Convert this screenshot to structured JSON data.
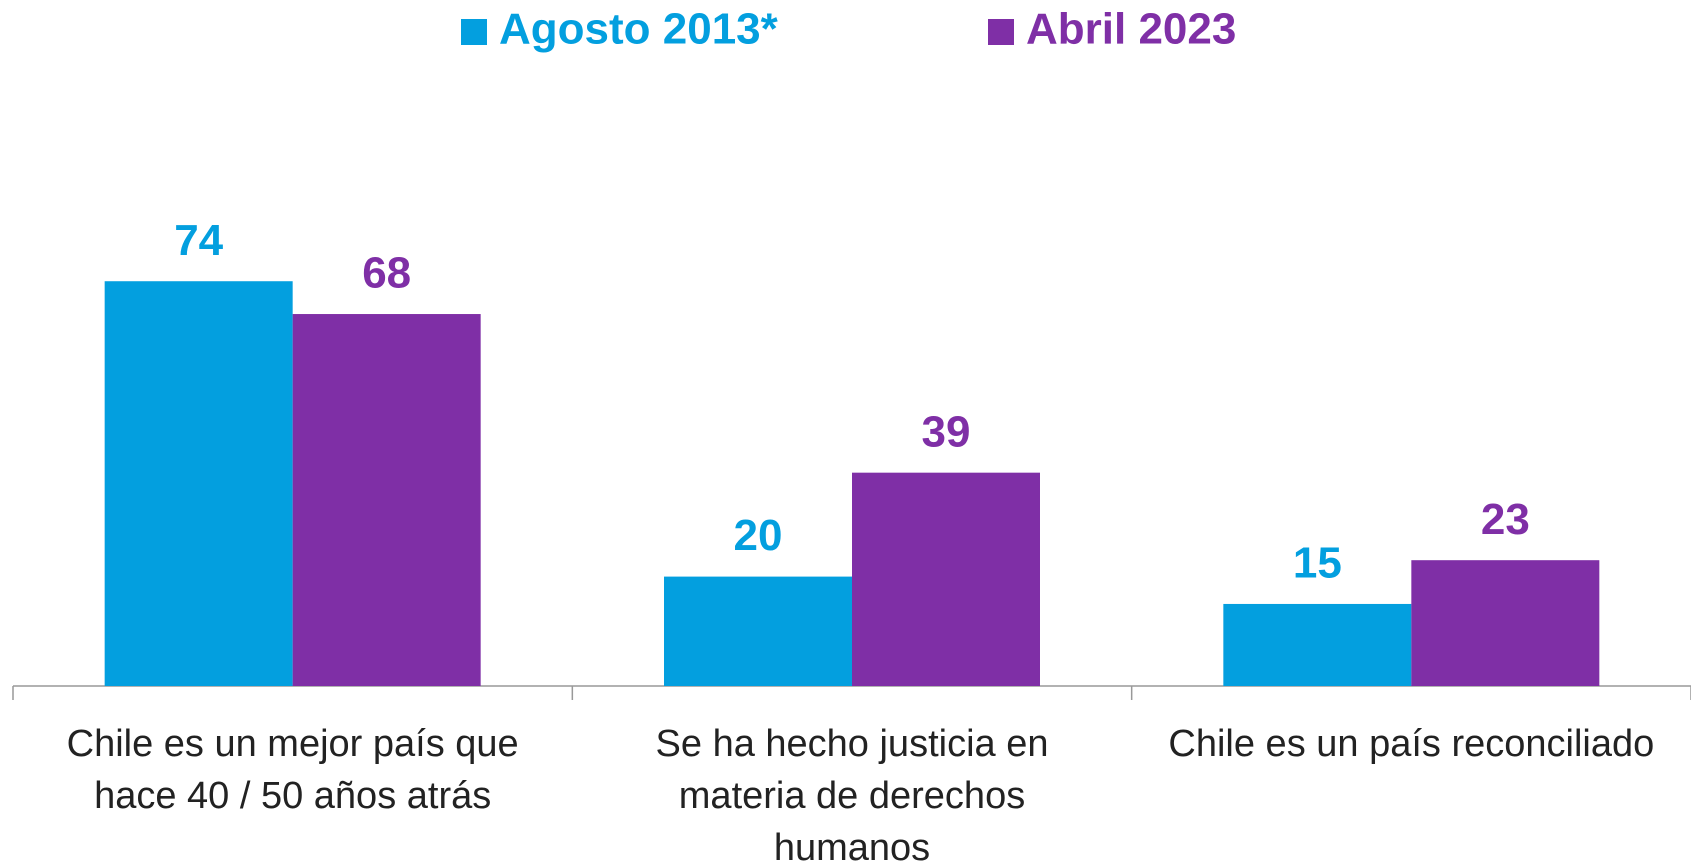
{
  "chart_data": {
    "type": "bar",
    "categories": [
      "Chile es un mejor país que hace 40 / 50 años atrás",
      "Se ha hecho justicia en materia de derechos humanos",
      "Chile es un país reconciliado"
    ],
    "series": [
      {
        "name": "Agosto 2013*",
        "color": "#039fdf",
        "values": [
          74,
          20,
          15
        ]
      },
      {
        "name": "Abril 2023",
        "color": "#7f2fa6",
        "values": [
          68,
          39,
          23
        ]
      }
    ],
    "legend": "top"
  }
}
